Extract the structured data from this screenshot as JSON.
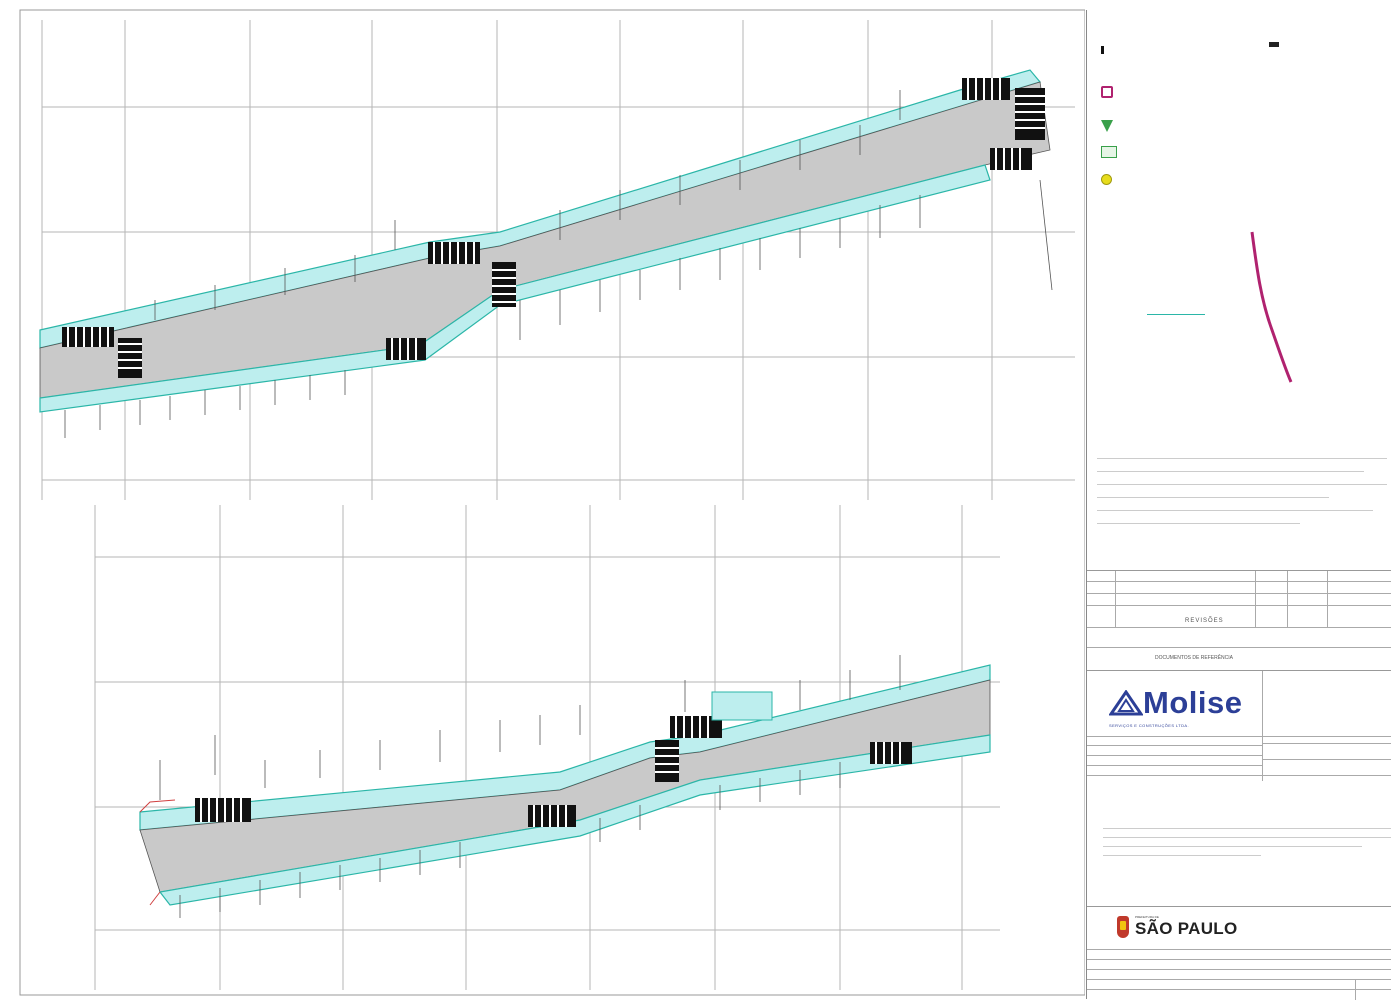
{
  "title_block": {
    "revisions_label": "REVISÕES",
    "responsible_label": "DOCUMENTOS DE REFERÊNCIA",
    "company_name": "Molise",
    "company_tagline": "SERVIÇOS E CONSTRUÇÕES LTDA.",
    "client_name": "SÃO PAULO",
    "client_prefix": "PREFEITURA DE"
  },
  "legend": {
    "icons": [
      "black-marker",
      "pink-square-icon",
      "green-tree-icon",
      "green-rectangle-icon",
      "yellow-circle-icon"
    ]
  },
  "colors": {
    "road": "#c9c9c9",
    "sidewalk": "#bdeeee",
    "sidewalk_edge": "#2bb6a8",
    "crosswalk": "#111111",
    "grid": "#999999",
    "accent_pink": "#b0226f",
    "accent_green": "#39a04a",
    "accent_yellow": "#e7dc1c",
    "molise_blue": "#2c3f97",
    "sp_red": "#c0392b"
  }
}
